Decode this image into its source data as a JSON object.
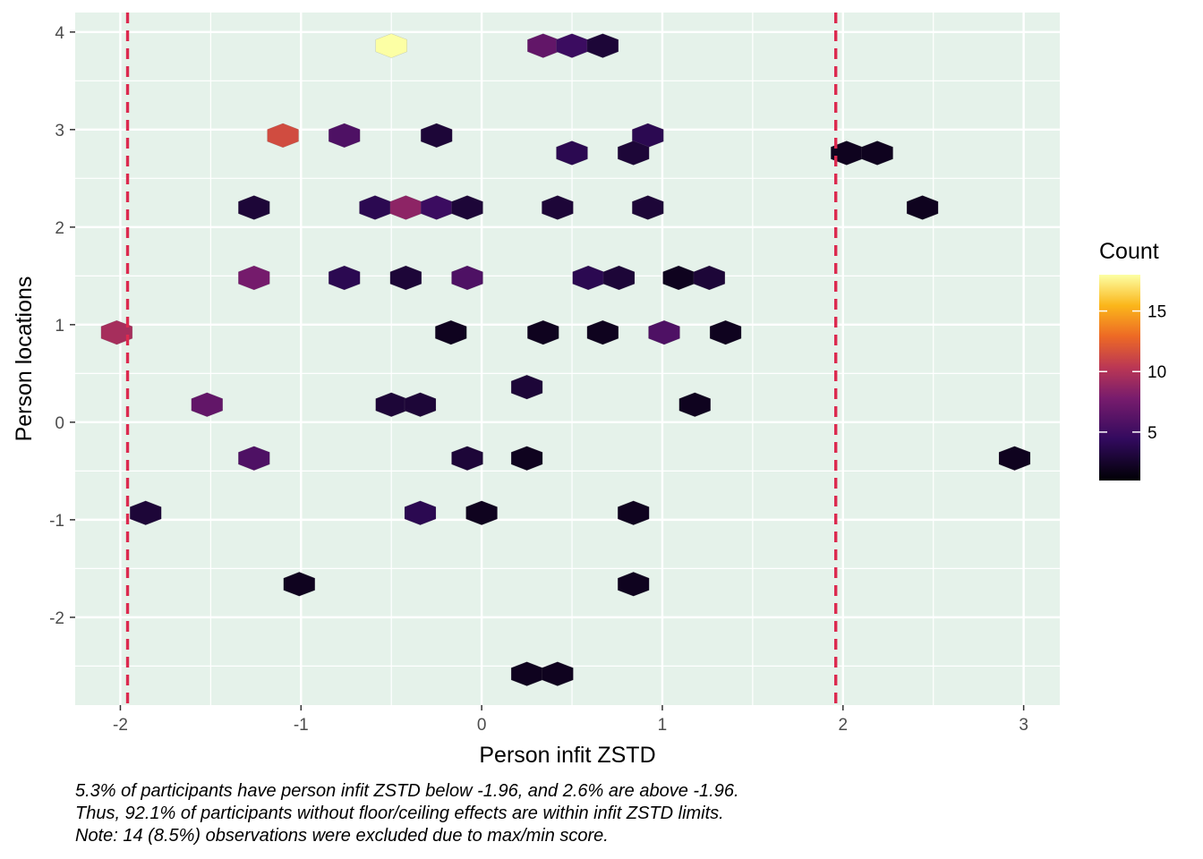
{
  "chart_data": {
    "type": "hexbin",
    "xlabel": "Person infit ZSTD",
    "ylabel": "Person locations",
    "xlim": [
      -2.25,
      3.2
    ],
    "ylim": [
      -2.9,
      4.2
    ],
    "x_ticks": [
      -2,
      -1,
      0,
      1,
      2,
      3
    ],
    "x_tick_labels": [
      "-2",
      "-1",
      "0",
      "1",
      "2",
      "3"
    ],
    "y_ticks": [
      -2,
      -1,
      0,
      1,
      2,
      3,
      4
    ],
    "y_tick_labels": [
      "-2",
      "-1",
      "0",
      "1",
      "2",
      "3",
      "4"
    ],
    "reference_lines_x": [
      -1.96,
      1.96
    ],
    "reference_line_color": "#dc2a4f",
    "panel_background": "#e5f2ea",
    "legend": {
      "title": "Count",
      "range": [
        1,
        18
      ],
      "ticks": [
        5,
        10,
        15
      ],
      "tick_labels": [
        "5",
        "10",
        "15"
      ],
      "position": "right",
      "colormap": "inferno"
    },
    "bins": [
      {
        "x": -0.5,
        "y": 3.86,
        "count": 18
      },
      {
        "x": 0.34,
        "y": 3.86,
        "count": 6
      },
      {
        "x": 0.5,
        "y": 3.86,
        "count": 4
      },
      {
        "x": 0.67,
        "y": 3.86,
        "count": 2
      },
      {
        "x": -1.1,
        "y": 2.94,
        "count": 11
      },
      {
        "x": -0.76,
        "y": 2.94,
        "count": 5
      },
      {
        "x": -0.25,
        "y": 2.94,
        "count": 2
      },
      {
        "x": 0.92,
        "y": 2.94,
        "count": 3
      },
      {
        "x": 0.5,
        "y": 2.76,
        "count": 3
      },
      {
        "x": 0.84,
        "y": 2.76,
        "count": 2
      },
      {
        "x": 2.02,
        "y": 2.76,
        "count": 1
      },
      {
        "x": 2.19,
        "y": 2.76,
        "count": 1
      },
      {
        "x": -1.26,
        "y": 2.2,
        "count": 2
      },
      {
        "x": -0.59,
        "y": 2.2,
        "count": 3
      },
      {
        "x": -0.42,
        "y": 2.2,
        "count": 8
      },
      {
        "x": -0.25,
        "y": 2.2,
        "count": 4
      },
      {
        "x": -0.08,
        "y": 2.2,
        "count": 2
      },
      {
        "x": 0.42,
        "y": 2.2,
        "count": 2
      },
      {
        "x": 0.92,
        "y": 2.2,
        "count": 2
      },
      {
        "x": 2.44,
        "y": 2.2,
        "count": 1
      },
      {
        "x": -1.26,
        "y": 1.48,
        "count": 7
      },
      {
        "x": -0.76,
        "y": 1.48,
        "count": 3
      },
      {
        "x": -0.42,
        "y": 1.48,
        "count": 2
      },
      {
        "x": -0.08,
        "y": 1.48,
        "count": 5
      },
      {
        "x": 0.59,
        "y": 1.48,
        "count": 3
      },
      {
        "x": 0.76,
        "y": 1.48,
        "count": 2
      },
      {
        "x": 1.09,
        "y": 1.48,
        "count": 1
      },
      {
        "x": 1.26,
        "y": 1.48,
        "count": 2
      },
      {
        "x": -2.02,
        "y": 0.92,
        "count": 9
      },
      {
        "x": -0.17,
        "y": 0.92,
        "count": 1
      },
      {
        "x": 0.34,
        "y": 0.92,
        "count": 1
      },
      {
        "x": 0.67,
        "y": 0.92,
        "count": 1
      },
      {
        "x": 1.01,
        "y": 0.92,
        "count": 5
      },
      {
        "x": 1.35,
        "y": 0.92,
        "count": 1
      },
      {
        "x": 0.25,
        "y": 0.36,
        "count": 2
      },
      {
        "x": -1.52,
        "y": 0.18,
        "count": 6
      },
      {
        "x": -0.5,
        "y": 0.18,
        "count": 2
      },
      {
        "x": -0.34,
        "y": 0.18,
        "count": 2
      },
      {
        "x": 1.18,
        "y": 0.18,
        "count": 1
      },
      {
        "x": -1.26,
        "y": -0.37,
        "count": 5
      },
      {
        "x": -0.08,
        "y": -0.37,
        "count": 2
      },
      {
        "x": 0.25,
        "y": -0.37,
        "count": 1
      },
      {
        "x": 2.95,
        "y": -0.37,
        "count": 1
      },
      {
        "x": -1.86,
        "y": -0.93,
        "count": 2
      },
      {
        "x": -0.34,
        "y": -0.93,
        "count": 3
      },
      {
        "x": 0.0,
        "y": -0.93,
        "count": 1
      },
      {
        "x": 0.84,
        "y": -0.93,
        "count": 1
      },
      {
        "x": -1.01,
        "y": -1.66,
        "count": 1
      },
      {
        "x": 0.84,
        "y": -1.66,
        "count": 1
      },
      {
        "x": 0.25,
        "y": -2.58,
        "count": 1
      },
      {
        "x": 0.42,
        "y": -2.58,
        "count": 1
      }
    ]
  },
  "caption": {
    "line1": "5.3% of participants have person infit ZSTD below -1.96, and 2.6% are above -1.96.",
    "line2": "Thus, 92.1% of participants without floor/ceiling effects are within infit ZSTD limits.",
    "line3": "Note: 14 (8.5%) observations were excluded due to max/min score."
  }
}
